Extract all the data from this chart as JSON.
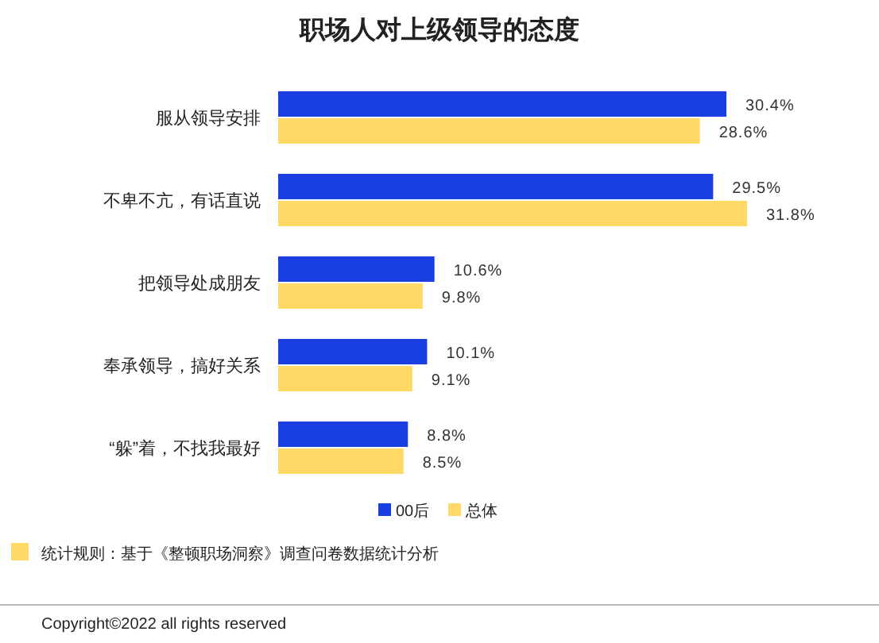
{
  "chart_data": {
    "type": "bar",
    "orientation": "horizontal",
    "title": "职场人对上级领导的态度",
    "categories": [
      "服从领导安排",
      "不卑不亢，有话直说",
      "把领导处成朋友",
      "奉承领导，搞好关系",
      "“躲”着，不找我最好"
    ],
    "series": [
      {
        "name": "00后",
        "color": "#1a3fe0",
        "values": [
          30.4,
          29.5,
          10.6,
          10.1,
          8.8
        ],
        "value_labels": [
          "30.4%",
          "29.5%",
          "10.6%",
          "10.1%",
          "8.8%"
        ]
      },
      {
        "name": "总体",
        "color": "#ffd966",
        "values": [
          28.6,
          31.8,
          9.8,
          9.1,
          8.5
        ],
        "value_labels": [
          "28.6%",
          "31.8%",
          "9.8%",
          "9.1%",
          "8.5%"
        ]
      }
    ],
    "legend": "bottom",
    "annotations": [
      "统计规则：基于《整顿职场洞察》调查问卷数据统计分析",
      "Copyright©2022 all rights reserved"
    ]
  }
}
